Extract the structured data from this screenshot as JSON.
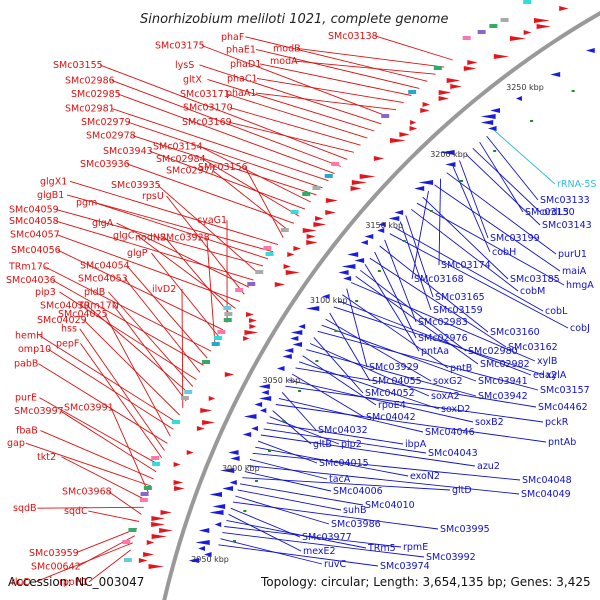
{
  "title": "Sinorhizobium meliloti 1021, complete genome",
  "footer": {
    "accession": "Accession: NC_003047",
    "summary": "Topology: circular; Length: 3,654,135 bp; Genes: 3,425"
  },
  "colors": {
    "forward_genes": "#e8141b",
    "reverse_genes": "#1a1ae6",
    "rna_genes": "#33ccdd",
    "backbone": "#999999",
    "gc_skew_marks": "#228b22",
    "label_text_outer": "#dd1111",
    "label_text_inner": "#1111cc",
    "label_text_rna": "#33bbdd"
  },
  "ruler": [
    "3250 kbp",
    "3200 kbp",
    "3150 kbp",
    "3100 kbp",
    "3050 kbp",
    "3000 kbp",
    "2950 kbp"
  ],
  "outer_labels": [
    "SMc03138",
    "modB",
    "modA",
    "phaF",
    "phaE1",
    "phaD1",
    "phaC1",
    "phaA1",
    "SMc03175",
    "lysS",
    "gltX",
    "SMc03171",
    "SMc03170",
    "SMc03169",
    "SMc03155",
    "SMc02986",
    "SMc02985",
    "SMc02981",
    "SMc02979",
    "SMc02978",
    "SMc03154",
    "SMc03943",
    "SMc02984",
    "SMc03936",
    "SMc02977",
    "SMc03156",
    "glgX1",
    "glgB1",
    "pgm",
    "SMc04059",
    "SMc03935",
    "SMc04058",
    "glgA",
    "rpsU",
    "SMc04057",
    "glgC",
    "nodN2",
    "cyaG1",
    "SMc04056",
    "glgP",
    "SMc03928",
    "TRm17C",
    "SMc04054",
    "SMc04036",
    "SMc04053",
    "pip3",
    "pldB",
    "SMc04030",
    "TRm17N",
    "ilvD2",
    "SMc04029",
    "hemH",
    "omp10",
    "SMc04025",
    "pabB",
    "hss",
    "pepF",
    "purE",
    "SMc03997",
    "fbaB",
    "gap",
    "SMc03991",
    "tkt2",
    "sqdB",
    "SMc03968",
    "sqdC",
    "SMc03959",
    "SMc00642",
    "rluD",
    "rpoH1"
  ],
  "inner_labels": [
    "rRNA-5S",
    "SMc03133",
    "SMc03150",
    "ordL3",
    "SMc03143",
    "SMc03199",
    "cobH",
    "purU1",
    "SMc03174",
    "maiA",
    "SMc03168",
    "SMc03185",
    "hmgA",
    "cobM",
    "SMc03165",
    "SMc03159",
    "cobL",
    "cobJ",
    "SMc02983",
    "SMc03160",
    "SMc02976",
    "SMc03162",
    "pntAa",
    "SMc02980",
    "SMc02982",
    "xylB",
    "SMc03929",
    "pntB",
    "eda2",
    "xylA",
    "SMc04055",
    "soxG2",
    "SMc03941",
    "SMc03157",
    "SMc04052",
    "soxA2",
    "SMc03942",
    "rpoE4",
    "soxD2",
    "SMc04462",
    "SMc04042",
    "soxB2",
    "pckR",
    "SMc04032",
    "SMc04046",
    "pntAb",
    "gltB",
    "pip2",
    "ibpA",
    "SMc04043",
    "azu2",
    "SMc04015",
    "exoN2",
    "SMc04048",
    "tacA",
    "SMc04049",
    "SMc04006",
    "gltD",
    "SMc04010",
    "suhB",
    "SMc03986",
    "SMc03995",
    "SMc03977",
    "mexE2",
    "TRm5",
    "rpmE",
    "SMc03992",
    "ruvC",
    "SMc03974"
  ]
}
